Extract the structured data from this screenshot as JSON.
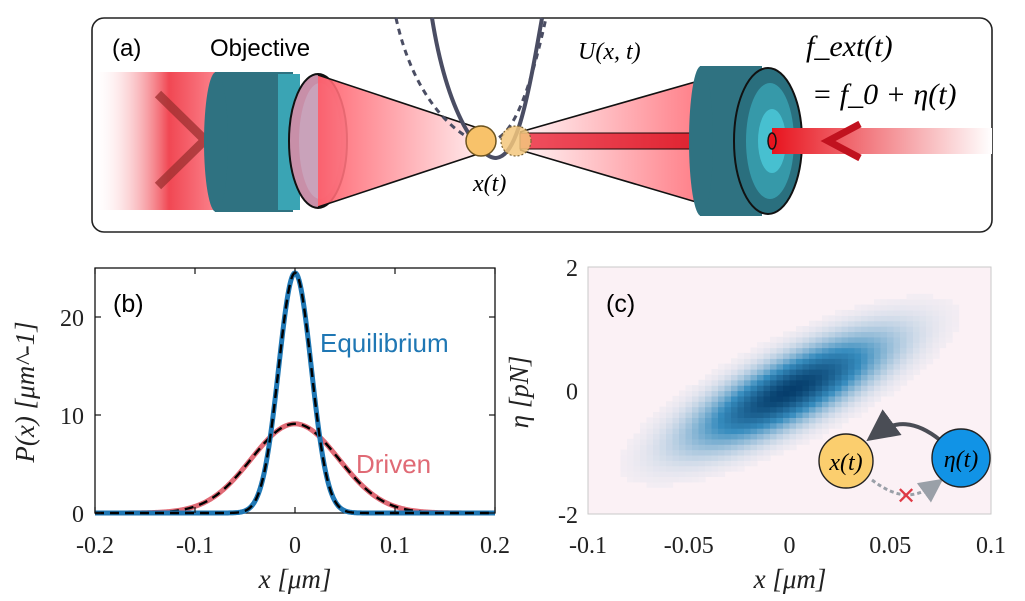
{
  "panel_a": {
    "label": "(a)",
    "objective_label": "Objective",
    "potential_label": "U(x, t)",
    "position_label": "x(t)",
    "force_label_line1": "f_ext(t)",
    "force_label_line2": "= f_0 + η(t)"
  },
  "chart_data": [
    {
      "id": "b",
      "type": "line",
      "panel_label": "(b)",
      "xlabel": "x [μm]",
      "ylabel": "P(x) [μm^-1]",
      "xlim": [
        -0.2,
        0.2
      ],
      "ylim": [
        0,
        25
      ],
      "xticks": [
        -0.2,
        -0.1,
        0,
        0.1,
        0.2
      ],
      "xtick_labels": [
        "-0.2",
        "-0.1",
        "0",
        "0.1",
        "0.2"
      ],
      "yticks": [
        0,
        10,
        20
      ],
      "ytick_labels": [
        "0",
        "10",
        "20"
      ],
      "grid": false,
      "series": [
        {
          "name": "Equilibrium",
          "color": "#1f77b4",
          "peak": 24.5,
          "center": 0.0,
          "std": 0.0163
        },
        {
          "name": "Driven",
          "color": "#e06a75",
          "peak": 9.1,
          "center": 0.0,
          "std": 0.0438
        }
      ],
      "overlay": "black dashed Gaussian fits on both series"
    },
    {
      "id": "c",
      "type": "heatmap",
      "panel_label": "(c)",
      "xlabel": "x [μm]",
      "ylabel": "η [pN]",
      "xlim": [
        -0.1,
        0.1
      ],
      "ylim": [
        -2,
        2
      ],
      "xticks": [
        -0.1,
        -0.05,
        0,
        0.05,
        0.1
      ],
      "xtick_labels": [
        "-0.1",
        "-0.05",
        "0",
        "0.05",
        "0.1"
      ],
      "yticks": [
        -2,
        0,
        2
      ],
      "ytick_labels": [
        "-2",
        "0",
        "2"
      ],
      "colormap": "white-pink to dark blue",
      "distribution": {
        "center_x": 0.0,
        "center_eta": 0.0,
        "std_x": 0.03,
        "std_eta": 0.55,
        "correlation": 0.78
      },
      "inset": {
        "node_x": "x(t)",
        "node_eta": "η(t)",
        "node_x_color": "#fbce6e",
        "node_eta_color": "#1193e6"
      }
    }
  ]
}
